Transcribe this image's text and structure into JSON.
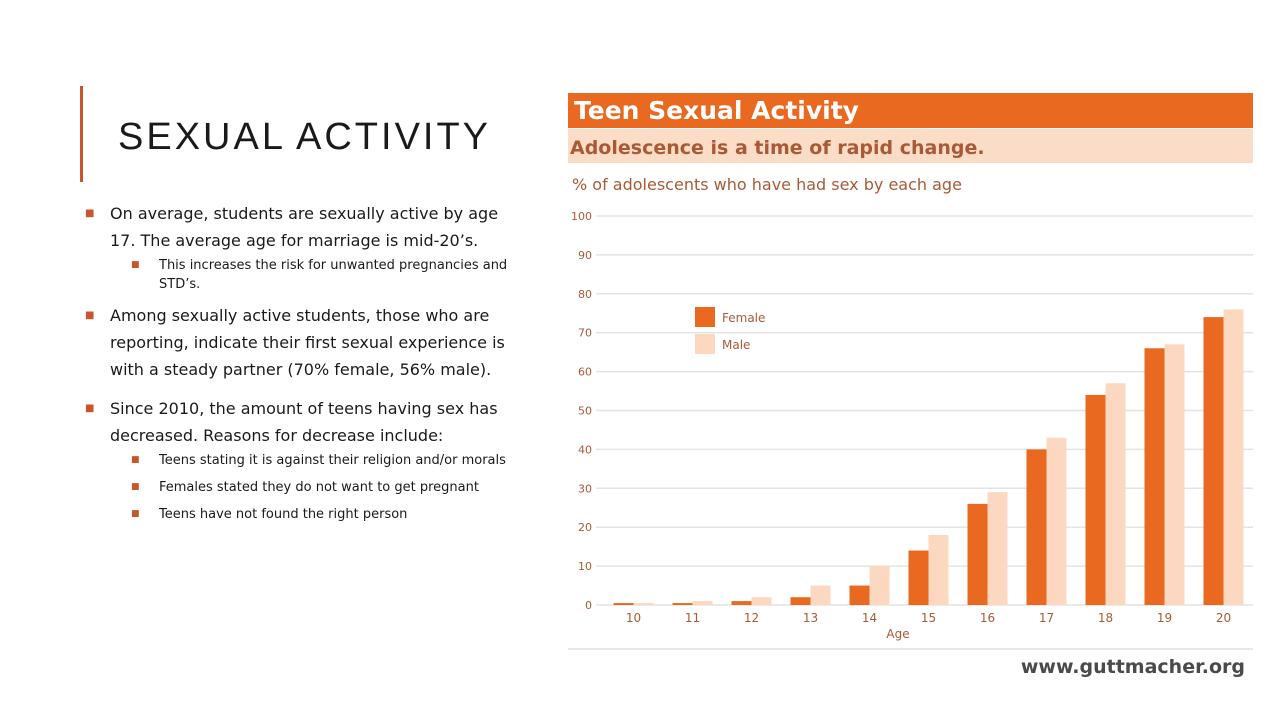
{
  "slide": {
    "title": "SEXUAL ACTIVITY",
    "bullets": [
      {
        "level": 1,
        "text": "On average, students are sexually active by age 17.  The average age for marriage is mid-20’s."
      },
      {
        "level": 2,
        "text": "This increases the risk for unwanted pregnancies and STD’s."
      },
      {
        "level": 1,
        "text": "Among sexually active students, those who are reporting, indicate their first sexual experience is with a steady partner (70% female, 56% male)."
      },
      {
        "level": 1,
        "text": "Since 2010, the amount of teens having sex has decreased. Reasons for decrease include:"
      },
      {
        "level": 2,
        "text": "Teens stating it is against their religion and/or morals"
      },
      {
        "level": 2,
        "text": "Females stated they do not want to get pregnant"
      },
      {
        "level": 2,
        "text": "Teens have not found the right person"
      }
    ]
  },
  "colors": {
    "accent": "#c8552b",
    "female": "#e8691f",
    "male": "#fbd8bf",
    "header_band": "#e8691f",
    "subheader_band": "#fbdcc6",
    "label_text": "#a85a36"
  },
  "chart_data": {
    "type": "bar",
    "title": "Teen Sexual Activity",
    "subtitle": "Adolescence is a time of rapid change.",
    "ylabel": "% of adolescents who have had sex by each age",
    "xlabel": "Age",
    "categories": [
      "10",
      "11",
      "12",
      "13",
      "14",
      "15",
      "16",
      "17",
      "18",
      "19",
      "20"
    ],
    "series": [
      {
        "name": "Female",
        "values": [
          0.5,
          0.5,
          1,
          2,
          5,
          14,
          26,
          40,
          54,
          66,
          74
        ]
      },
      {
        "name": "Male",
        "values": [
          0.5,
          1,
          2,
          5,
          10,
          18,
          29,
          43,
          57,
          67,
          76
        ]
      }
    ],
    "ylim": [
      0,
      100
    ],
    "yticks": [
      0,
      10,
      20,
      30,
      40,
      50,
      60,
      70,
      80,
      90,
      100
    ],
    "grid": true,
    "legend": "top-left",
    "source": "www.guttmacher.org"
  }
}
